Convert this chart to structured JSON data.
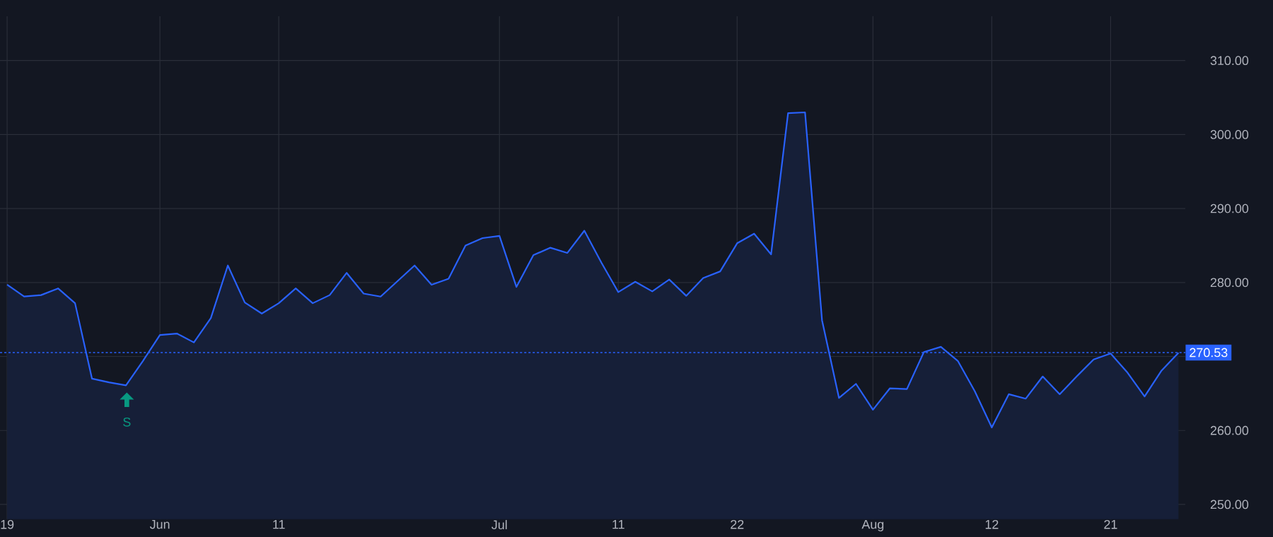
{
  "chart_data": {
    "type": "area",
    "categories": [
      "19",
      null,
      null,
      null,
      null,
      null,
      null,
      null,
      null,
      "Jun",
      null,
      null,
      null,
      null,
      null,
      null,
      "11",
      null,
      null,
      null,
      null,
      null,
      null,
      null,
      null,
      null,
      null,
      null,
      null,
      "Jul",
      null,
      null,
      null,
      null,
      null,
      null,
      "11",
      null,
      null,
      null,
      null,
      null,
      null,
      "22",
      null,
      null,
      null,
      null,
      null,
      null,
      null,
      "Aug",
      null,
      null,
      null,
      null,
      null,
      null,
      "12",
      null,
      null,
      null,
      null,
      null,
      null,
      "21",
      null,
      null,
      null,
      null
    ],
    "series": [
      {
        "color": "#2962ff",
        "values": [
          279.7,
          278.1,
          278.3,
          279.2,
          277.2,
          267.0,
          266.5,
          266.1,
          269.4,
          272.9,
          273.1,
          271.9,
          275.2,
          282.3,
          277.3,
          275.8,
          277.2,
          279.2,
          277.2,
          278.3,
          281.3,
          278.5,
          278.1,
          280.2,
          282.3,
          279.7,
          280.5,
          285.0,
          286.0,
          286.3,
          279.4,
          283.7,
          284.7,
          284.0,
          287.0,
          282.7,
          278.7,
          280.1,
          278.8,
          280.4,
          278.2,
          280.6,
          281.5,
          285.3,
          286.6,
          283.8,
          302.9,
          303.0,
          274.9,
          264.4,
          266.3,
          262.8,
          265.7,
          265.6,
          270.6,
          271.3,
          269.4,
          265.3,
          260.4,
          264.9,
          264.3,
          267.3,
          264.9,
          267.3,
          269.6,
          270.4,
          267.8,
          264.6,
          268.1,
          270.5
        ]
      }
    ],
    "ylim": [
      248,
      316
    ],
    "yticks": [
      {
        "value": 250,
        "label": "250.00"
      },
      {
        "value": 260,
        "label": "260.00"
      },
      {
        "value": 270,
        "label": null
      },
      {
        "value": 280,
        "label": "280.00"
      },
      {
        "value": 290,
        "label": "290.00"
      },
      {
        "value": 300,
        "label": "300.00"
      },
      {
        "value": 310,
        "label": "310.00"
      }
    ],
    "grid": true,
    "ref_lines": [
      {
        "axis": "y",
        "value": 270.53,
        "label": "270.53",
        "color": "#2962ff",
        "line_style": "dotted"
      }
    ],
    "annotations": [
      "S"
    ]
  }
}
